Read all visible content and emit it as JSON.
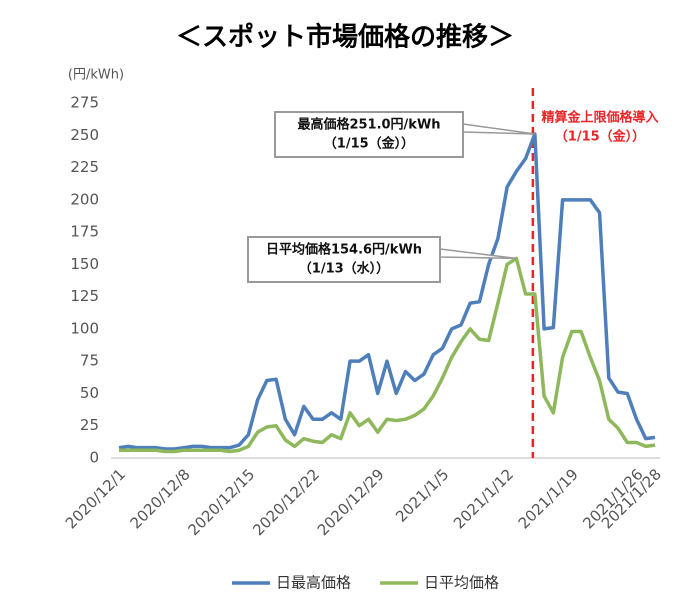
{
  "chart_data": {
    "type": "line",
    "title": "＜スポット市場価格の推移＞",
    "y_label": "(円/kWh)",
    "categories": [
      "2020/12/1",
      "2020/12/2",
      "2020/12/3",
      "2020/12/4",
      "2020/12/5",
      "2020/12/6",
      "2020/12/7",
      "2020/12/8",
      "2020/12/9",
      "2020/12/10",
      "2020/12/11",
      "2020/12/12",
      "2020/12/13",
      "2020/12/14",
      "2020/12/15",
      "2020/12/16",
      "2020/12/17",
      "2020/12/18",
      "2020/12/19",
      "2020/12/20",
      "2020/12/21",
      "2020/12/22",
      "2020/12/23",
      "2020/12/24",
      "2020/12/25",
      "2020/12/26",
      "2020/12/27",
      "2020/12/28",
      "2020/12/29",
      "2020/12/30",
      "2020/12/31",
      "2021/1/1",
      "2021/1/2",
      "2021/1/3",
      "2021/1/4",
      "2021/1/5",
      "2021/1/6",
      "2021/1/7",
      "2021/1/8",
      "2021/1/9",
      "2021/1/10",
      "2021/1/11",
      "2021/1/12",
      "2021/1/13",
      "2021/1/14",
      "2021/1/15",
      "2021/1/16",
      "2021/1/17",
      "2021/1/18",
      "2021/1/19",
      "2021/1/20",
      "2021/1/21",
      "2021/1/22",
      "2021/1/23",
      "2021/1/24",
      "2021/1/25",
      "2021/1/26",
      "2021/1/27",
      "2021/1/28"
    ],
    "xticks": [
      "2020/12/1",
      "2020/12/8",
      "2020/12/15",
      "2020/12/22",
      "2020/12/29",
      "2021/1/5",
      "2021/1/12",
      "2021/1/19",
      "2021/1/26",
      "2021/1/28"
    ],
    "series": [
      {
        "name": "日最高価格",
        "color": "#4e7fba",
        "values": [
          8,
          9,
          8,
          8,
          8,
          7,
          7,
          8,
          9,
          9,
          8,
          8,
          8,
          10,
          18,
          45,
          60,
          61,
          30,
          18,
          40,
          30,
          30,
          35,
          30,
          75,
          75,
          80,
          50,
          75,
          50,
          67,
          60,
          65,
          80,
          85,
          100,
          103,
          120,
          121,
          150,
          170,
          210,
          222,
          232,
          251,
          100,
          101,
          200,
          200,
          200,
          200,
          190,
          62,
          51,
          50,
          30,
          15,
          16
        ]
      },
      {
        "name": "日平均価格",
        "color": "#8fb85c",
        "values": [
          6,
          6,
          6,
          6,
          6,
          5,
          5,
          6,
          6,
          6,
          6,
          6,
          5,
          6,
          9,
          20,
          24,
          25,
          14,
          9,
          15,
          13,
          12,
          18,
          15,
          35,
          25,
          30,
          20,
          30,
          29,
          30,
          33,
          38,
          48,
          62,
          78,
          90,
          100,
          92,
          91,
          120,
          150,
          154.6,
          127,
          127,
          48,
          35,
          78,
          98,
          98,
          78,
          60,
          30,
          23,
          12,
          12,
          9,
          10
        ]
      }
    ],
    "ylim": [
      0,
      275
    ],
    "yticks": [
      0,
      25,
      50,
      75,
      100,
      125,
      150,
      175,
      200,
      225,
      250,
      275
    ],
    "grid": false,
    "legend": "bottom",
    "annotations": [
      {
        "lines": [
          "最高価格251.0円/kWh",
          "（1/15（金））"
        ]
      },
      {
        "lines": [
          "日平均価格154.6円/kWh",
          "（1/13（水））"
        ]
      }
    ],
    "marker": {
      "x": "2021/1/15",
      "color": "#e8262a",
      "lines": [
        "精算金上限価格導入",
        "（1/15（金））"
      ]
    }
  }
}
